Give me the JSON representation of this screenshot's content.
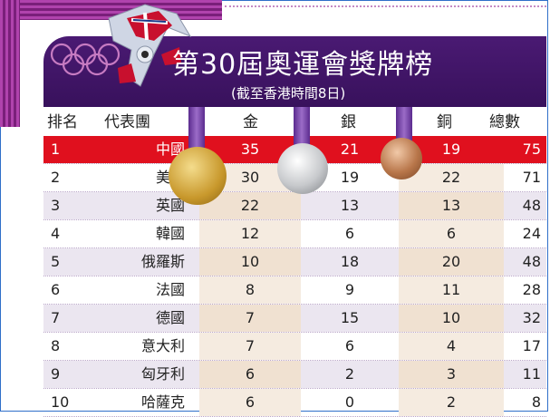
{
  "title": "第30屆奧運會獎牌榜",
  "subtitle": "(截至香港時間8日)",
  "columns": {
    "rank": "排名",
    "team": "代表團",
    "gold": "金",
    "silver": "銀",
    "bronze": "銅",
    "total": "總數"
  },
  "rows": [
    {
      "rank": "1",
      "team": "中國",
      "gold": "35",
      "silver": "21",
      "bronze": "19",
      "total": "75"
    },
    {
      "rank": "2",
      "team": "美國",
      "gold": "30",
      "silver": "19",
      "bronze": "22",
      "total": "71"
    },
    {
      "rank": "3",
      "team": "英國",
      "gold": "22",
      "silver": "13",
      "bronze": "13",
      "total": "48"
    },
    {
      "rank": "4",
      "team": "韓國",
      "gold": "12",
      "silver": "6",
      "bronze": "6",
      "total": "24"
    },
    {
      "rank": "5",
      "team": "俄羅斯",
      "gold": "10",
      "silver": "18",
      "bronze": "20",
      "total": "48"
    },
    {
      "rank": "6",
      "team": "法國",
      "gold": "8",
      "silver": "9",
      "bronze": "11",
      "total": "28"
    },
    {
      "rank": "7",
      "team": "德國",
      "gold": "7",
      "silver": "15",
      "bronze": "10",
      "total": "32"
    },
    {
      "rank": "8",
      "team": "意大利",
      "gold": "7",
      "silver": "6",
      "bronze": "4",
      "total": "17"
    },
    {
      "rank": "9",
      "team": "匈牙利",
      "gold": "6",
      "silver": "2",
      "bronze": "3",
      "total": "11"
    },
    {
      "rank": "10",
      "team": "哈薩克",
      "gold": "6",
      "silver": "0",
      "bronze": "2",
      "total": "8"
    }
  ],
  "colors": {
    "header_bg": "#4a1a73",
    "highlight_row": "#e0101e",
    "band": "#9a2e98"
  },
  "icons": {
    "rings": "olympic-rings-icon",
    "mascot": "olympic-mascot-icon",
    "gold_medal": "gold-medal-icon",
    "silver_medal": "silver-medal-icon",
    "bronze_medal": "bronze-medal-icon"
  }
}
